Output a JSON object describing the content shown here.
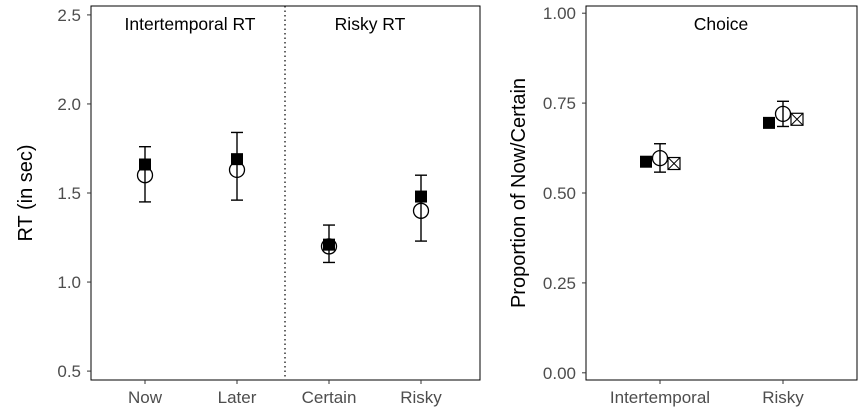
{
  "chart_data": [
    {
      "type": "scatter",
      "ylabel": "RT (in sec)",
      "ylim": [
        0.45,
        2.55
      ],
      "yticks": [
        "0.5",
        "1.0",
        "1.5",
        "2.0",
        "2.5"
      ],
      "categories": [
        "Now",
        "Later",
        "Certain",
        "Risky"
      ],
      "panel_labels": [
        "Intertemporal RT",
        "Risky RT"
      ],
      "divider": "dotted vertical line between Later and Certain",
      "series": [
        {
          "marker": "filled-square",
          "values": [
            1.66,
            1.69,
            1.21,
            1.48
          ]
        },
        {
          "marker": "open-circle",
          "values": [
            1.6,
            1.63,
            1.2,
            1.4
          ],
          "error_low": [
            1.45,
            1.46,
            1.11,
            1.23
          ],
          "error_high": [
            1.76,
            1.84,
            1.32,
            1.6
          ]
        }
      ]
    },
    {
      "type": "scatter",
      "ylabel": "Proportion of Now/Certain",
      "ylim": [
        -0.02,
        1.02
      ],
      "yticks": [
        "0.00",
        "0.25",
        "0.50",
        "0.75",
        "1.00"
      ],
      "categories": [
        "Intertemporal",
        "Risky"
      ],
      "panel_labels": [
        "Choice"
      ],
      "series": [
        {
          "marker": "filled-square",
          "values": [
            0.587,
            0.695
          ]
        },
        {
          "marker": "open-circle",
          "values": [
            0.597,
            0.72
          ],
          "error_low": [
            0.558,
            0.685
          ],
          "error_high": [
            0.637,
            0.755
          ]
        },
        {
          "marker": "crossed-square",
          "values": [
            0.582,
            0.705
          ]
        }
      ]
    }
  ]
}
